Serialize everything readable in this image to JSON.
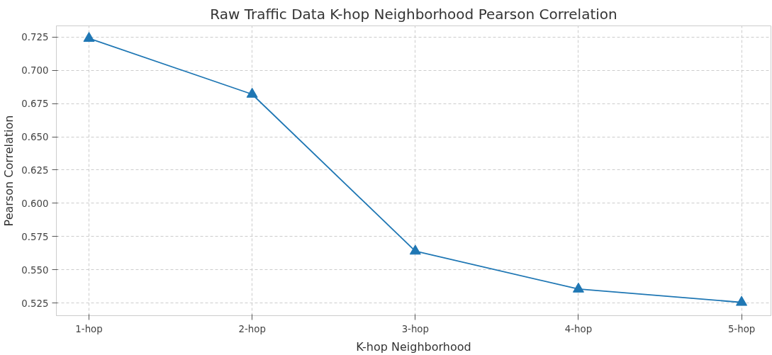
{
  "chart_data": {
    "type": "line",
    "title": "Raw Traffic Data K-hop Neighborhood Pearson Correlation",
    "xlabel": "K-hop Neighborhood",
    "ylabel": "Pearson Correlation",
    "categories": [
      "1-hop",
      "2-hop",
      "3-hop",
      "4-hop",
      "5-hop"
    ],
    "series": [
      {
        "color": "#1f77b4",
        "values": [
          0.724,
          0.682,
          0.564,
          0.5355,
          0.5255
        ]
      }
    ],
    "ylim": [
      0.5155,
      0.7334
    ],
    "yticks": [
      0.525,
      {
        "value": 0.55,
        "label": "0.550"
      },
      0.575,
      {
        "value": 0.6,
        "label": "0.600"
      },
      0.625,
      {
        "value": 0.65,
        "label": "0.650"
      },
      0.675,
      {
        "value": 0.7,
        "label": "0.700"
      },
      0.725
    ],
    "grid": true,
    "marker": "triangle",
    "line_style": "solid"
  }
}
